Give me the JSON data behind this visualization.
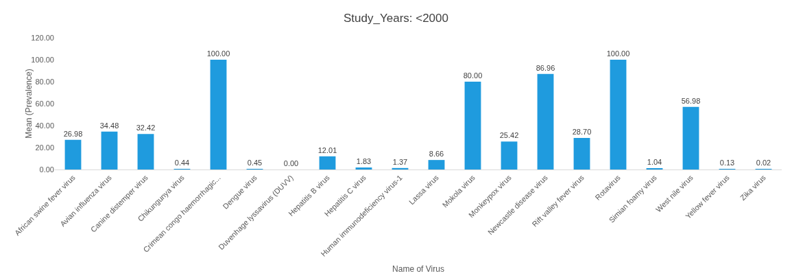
{
  "chart_data": {
    "type": "bar",
    "title": "Study_Years: <2000",
    "xlabel": "Name of Virus",
    "ylabel": "Mean (Prevalence)",
    "categories": [
      "African swine fever virus",
      "Avian influenza virus",
      "Canine distemper virus",
      "Chikungunya virus",
      "Crimean congo haemorrhagic...",
      "Dengue virus",
      "Duvenhage lyssavirus (DUVV)",
      "Hepatitis B virus",
      "Hepatitis C virus",
      "Human immunodeficiency virus-1",
      "Lassa virus",
      "Mokola virus",
      "Monkeypox virus",
      "Newcastle disease virus",
      "Rift valley fever virus",
      "Rotavirus",
      "Simian foamy virus",
      "West nile virus",
      "Yellow fever virus",
      "Zika virus"
    ],
    "values": [
      26.98,
      34.48,
      32.42,
      0.44,
      100,
      0.45,
      0,
      12.01,
      1.83,
      1.37,
      8.66,
      80,
      25.42,
      86.96,
      28.7,
      100,
      1.04,
      56.98,
      0.13,
      0.02
    ],
    "value_labels": [
      "26.98",
      "34.48",
      "32.42",
      "0.44",
      "100.00",
      "0.45",
      "0.00",
      "12.01",
      "1.83",
      "1.37",
      "8.66",
      "80.00",
      "25.42",
      "86.96",
      "28.70",
      "100.00",
      "1.04",
      "56.98",
      "0.13",
      "0.02"
    ],
    "color": "#1f9bde",
    "ylim": [
      0,
      120
    ],
    "yticks": [
      {
        "value": 0,
        "label": "0.00"
      },
      {
        "value": 20,
        "label": "20.00"
      },
      {
        "value": 40,
        "label": "40.00"
      },
      {
        "value": 60,
        "label": "60.00"
      },
      {
        "value": 80,
        "label": "80.00"
      },
      {
        "value": 100,
        "label": "100.00"
      },
      {
        "value": 120,
        "label": "120.00"
      }
    ],
    "grid": false,
    "legend": false
  }
}
